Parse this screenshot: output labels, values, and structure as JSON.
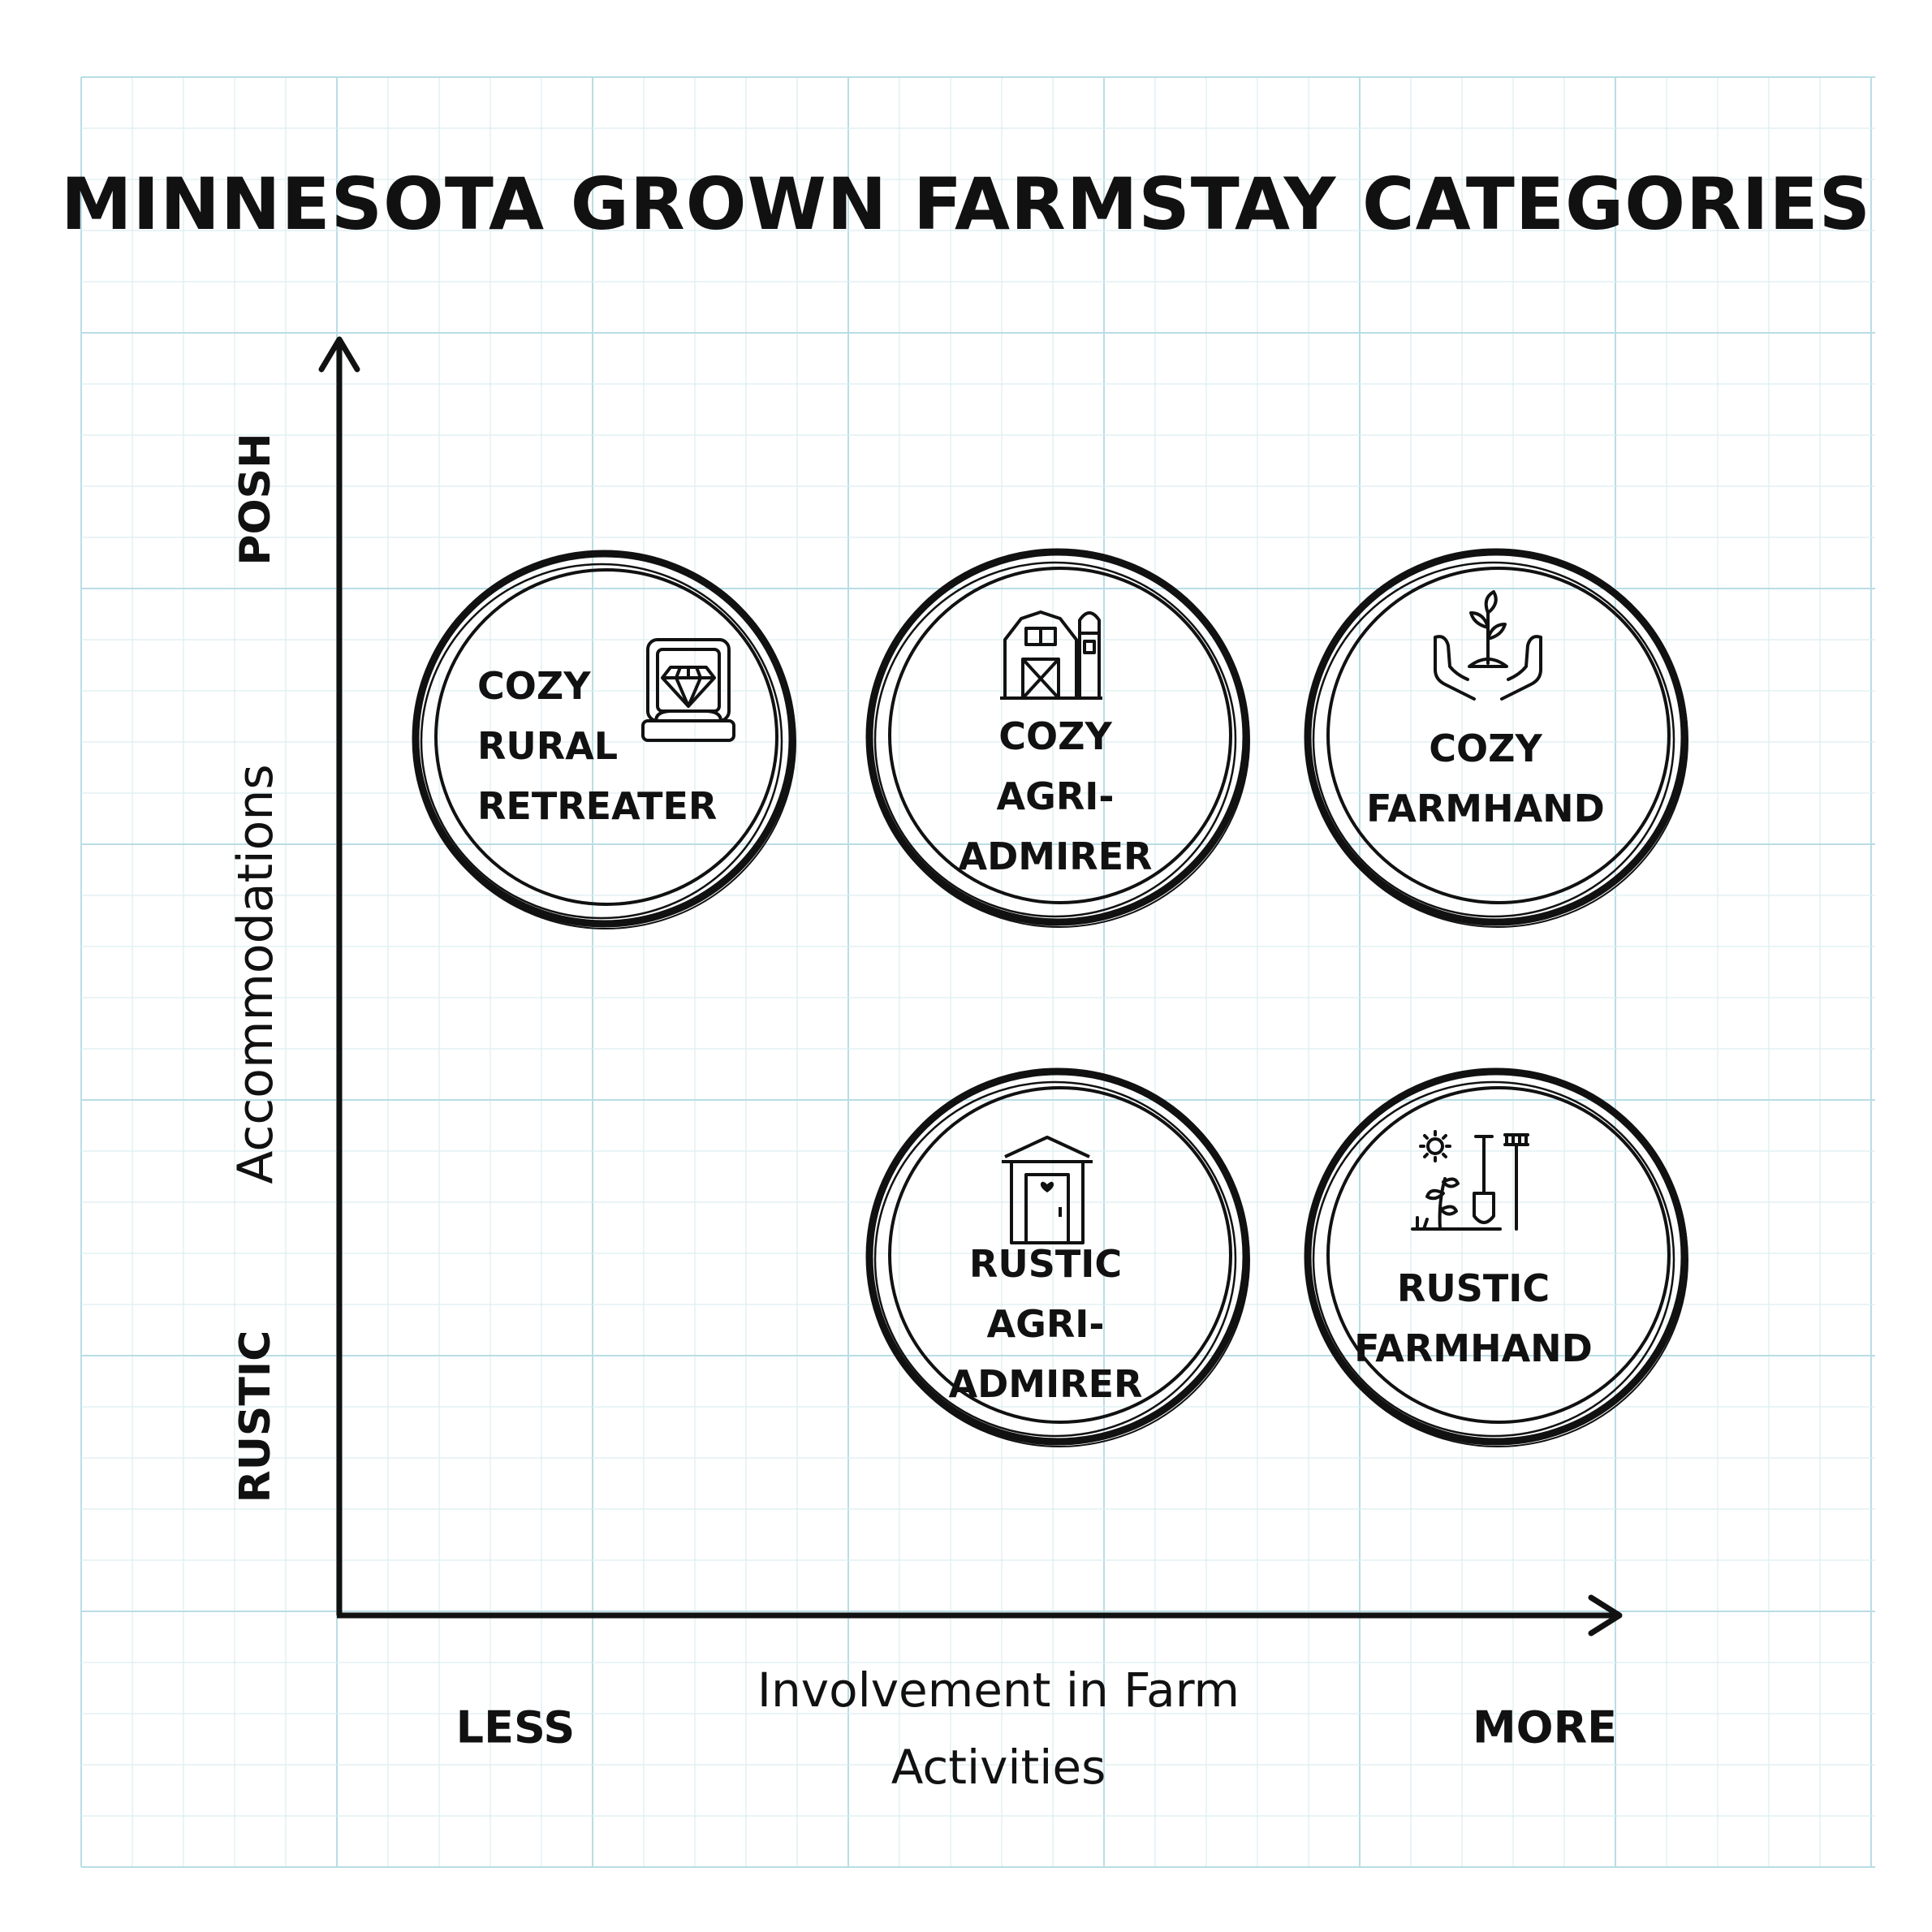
{
  "title": "MINNESOTA GROWN FARMSTAY CATEGORIES",
  "y_axis": {
    "label": "Accommodations",
    "top": "POSH",
    "bottom": "RUSTIC"
  },
  "x_axis": {
    "label_line1": "Involvement in Farm",
    "label_line2": "Activities",
    "left": "LESS",
    "right": "MORE"
  },
  "categories": [
    {
      "lines": [
        "COZY",
        "RURAL",
        "RETREATER"
      ],
      "icon": "diamond-ring-box-icon"
    },
    {
      "lines": [
        "COZY",
        "AGRI-",
        "ADMIRER"
      ],
      "icon": "barn-silo-icon"
    },
    {
      "lines": [
        "COZY",
        "FARMHAND"
      ],
      "icon": "hands-seedling-icon"
    },
    {
      "lines": [
        "RUSTIC",
        "AGRI-",
        "ADMIRER"
      ],
      "icon": "outhouse-icon"
    },
    {
      "lines": [
        "RUSTIC",
        "FARMHAND"
      ],
      "icon": "garden-tools-icon"
    }
  ],
  "colors": {
    "ink": "#111111",
    "grid": "#cfe6ec",
    "background": "#ffffff"
  }
}
